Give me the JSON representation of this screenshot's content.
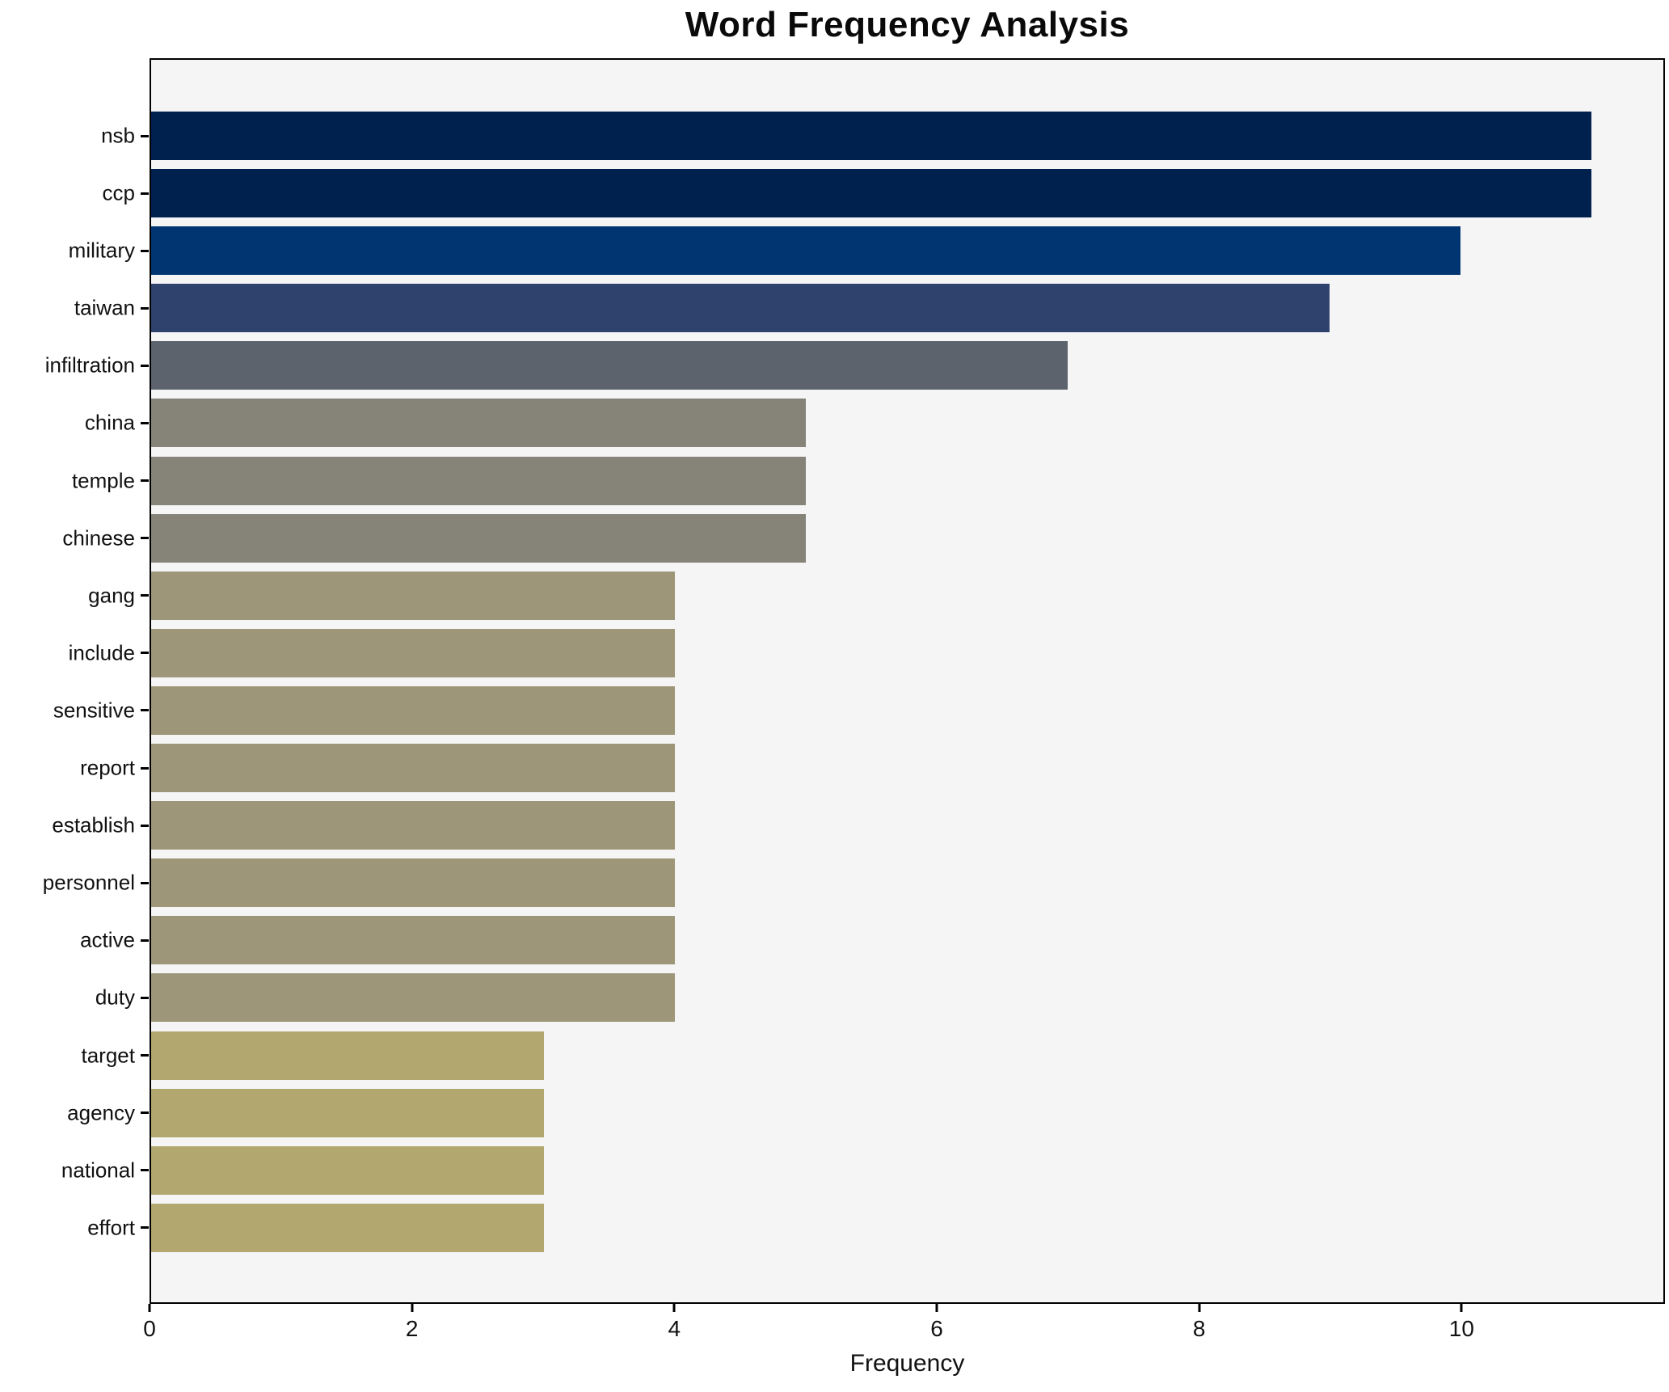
{
  "title": "Word Frequency Analysis",
  "axis": {
    "xlabel": "Frequency"
  },
  "chart_data": {
    "type": "bar",
    "orientation": "horizontal",
    "title": "Word Frequency Analysis",
    "xlabel": "Frequency",
    "ylabel": "",
    "categories": [
      "nsb",
      "ccp",
      "military",
      "taiwan",
      "infiltration",
      "china",
      "temple",
      "chinese",
      "gang",
      "include",
      "sensitive",
      "report",
      "establish",
      "personnel",
      "active",
      "duty",
      "target",
      "agency",
      "national",
      "effort"
    ],
    "values": [
      11,
      11,
      10,
      9,
      7,
      5,
      5,
      5,
      4,
      4,
      4,
      4,
      4,
      4,
      4,
      4,
      3,
      3,
      3,
      3
    ],
    "bar_colors": [
      "#00204e",
      "#00204e",
      "#003571",
      "#2e426d",
      "#5d636d",
      "#868478",
      "#868478",
      "#868478",
      "#9e9678",
      "#9e9678",
      "#9e9678",
      "#9e9678",
      "#9e9678",
      "#9e9678",
      "#9e9678",
      "#9e9678",
      "#b2a76f",
      "#b2a76f",
      "#b2a76f",
      "#b2a76f"
    ],
    "xlim": [
      0,
      11.55
    ],
    "xticks": [
      0,
      2,
      4,
      6,
      8,
      10
    ],
    "grid": false,
    "legend": "none",
    "plot_background": "#f5f5f6",
    "figure_background": "#ffffff",
    "spine_color": "#000000"
  }
}
